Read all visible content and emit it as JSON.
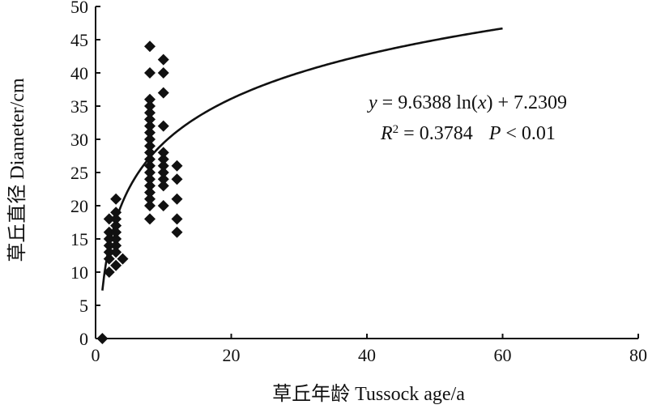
{
  "chart_data": {
    "type": "scatter",
    "xlabel": "草丘年龄 Tussock age/a",
    "ylabel": "草丘直径 Diameter/cm",
    "xlim": [
      0,
      80
    ],
    "ylim": [
      0,
      50
    ],
    "xticks": [
      0,
      20,
      40,
      60,
      80
    ],
    "yticks": [
      0,
      5,
      10,
      15,
      20,
      25,
      30,
      35,
      40,
      45,
      50
    ],
    "grid": false,
    "marker": "diamond",
    "marker_color": "#111111",
    "points": [
      [
        1,
        0
      ],
      [
        2,
        10
      ],
      [
        2,
        12
      ],
      [
        2,
        13
      ],
      [
        2,
        14
      ],
      [
        2,
        15
      ],
      [
        2,
        16
      ],
      [
        2,
        18
      ],
      [
        3,
        11
      ],
      [
        3,
        13
      ],
      [
        3,
        14
      ],
      [
        3,
        15
      ],
      [
        3,
        16
      ],
      [
        3,
        17
      ],
      [
        3,
        18
      ],
      [
        3,
        19
      ],
      [
        3,
        21
      ],
      [
        4,
        12
      ],
      [
        8,
        18
      ],
      [
        8,
        20
      ],
      [
        8,
        21
      ],
      [
        8,
        22
      ],
      [
        8,
        23
      ],
      [
        8,
        24
      ],
      [
        8,
        25
      ],
      [
        8,
        26
      ],
      [
        8,
        27
      ],
      [
        8,
        28
      ],
      [
        8,
        29
      ],
      [
        8,
        30
      ],
      [
        8,
        31
      ],
      [
        8,
        32
      ],
      [
        8,
        33
      ],
      [
        8,
        34
      ],
      [
        8,
        35
      ],
      [
        8,
        36
      ],
      [
        8,
        40
      ],
      [
        8,
        44
      ],
      [
        10,
        20
      ],
      [
        10,
        23
      ],
      [
        10,
        24
      ],
      [
        10,
        25
      ],
      [
        10,
        26
      ],
      [
        10,
        27
      ],
      [
        10,
        28
      ],
      [
        10,
        32
      ],
      [
        10,
        37
      ],
      [
        10,
        40
      ],
      [
        10,
        42
      ],
      [
        12,
        16
      ],
      [
        12,
        18
      ],
      [
        12,
        21
      ],
      [
        12,
        24
      ],
      [
        12,
        26
      ]
    ],
    "fit": {
      "type": "log",
      "a": 9.6388,
      "b": 7.2309,
      "x_range": [
        1,
        60
      ]
    },
    "annotation": {
      "equation": {
        "y": "y",
        "eq_head": " = 9.6388 ln(",
        "x": "x",
        "eq_tail": ") + 7.2309"
      },
      "stats": {
        "r": "R",
        "r_sup": "2",
        "r_val": " = 0.3784",
        "p": "P",
        "p_val": " < 0.01"
      }
    }
  }
}
